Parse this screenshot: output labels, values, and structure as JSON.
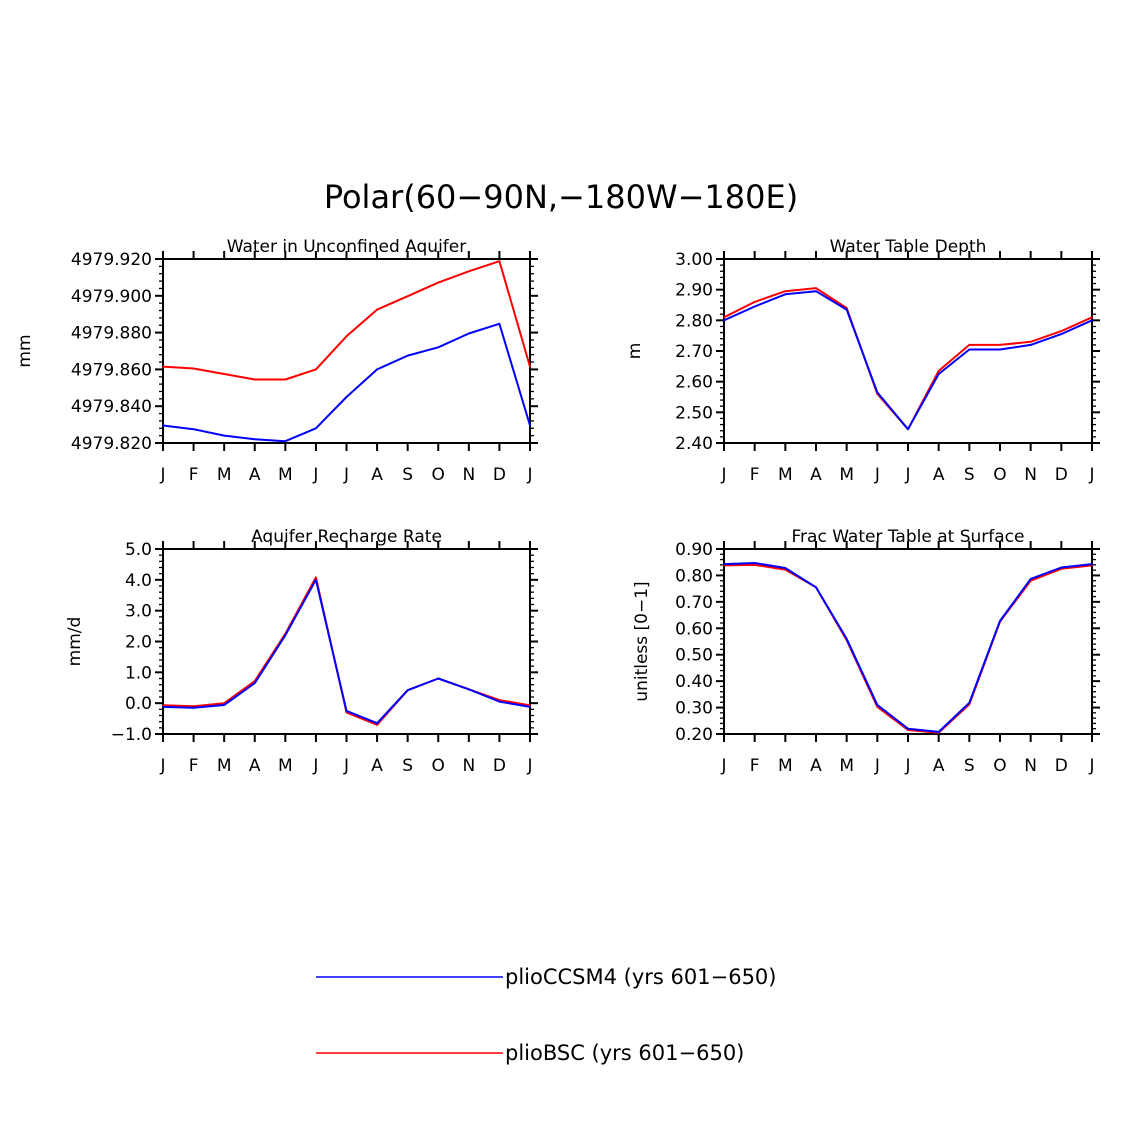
{
  "figure_title": "Polar(60−90N,−180W−180E)",
  "colors": {
    "plioCCSM4": "#0000ff",
    "plioBSC": "#ff0000",
    "axis": "#000000"
  },
  "legend": [
    {
      "label": "plioCCSM4 (yrs 601−650)",
      "color": "#0000ff"
    },
    {
      "label": "plioBSC (yrs 601−650)",
      "color": "#ff0000"
    }
  ],
  "chart_data": [
    {
      "type": "line",
      "title": "Water in Unconfined Aquifer",
      "xlabel": "",
      "ylabel": "mm",
      "categories": [
        "J",
        "F",
        "M",
        "A",
        "M",
        "J",
        "J",
        "A",
        "S",
        "O",
        "N",
        "D",
        "J"
      ],
      "ylim": [
        4979.82,
        4979.92
      ],
      "yticks": [
        4979.82,
        4979.84,
        4979.86,
        4979.88,
        4979.9,
        4979.92
      ],
      "ytick_labels": [
        "4979.820",
        "4979.840",
        "4979.860",
        "4979.880",
        "4979.900",
        "4979.920"
      ],
      "series": [
        {
          "key": "plioBSC",
          "values": [
            4979.8615,
            4979.8605,
            4979.8575,
            4979.8545,
            4979.8545,
            4979.86,
            4979.878,
            4979.8925,
            4979.8998,
            4979.9072,
            4979.9133,
            4979.9188,
            4979.8615
          ]
        },
        {
          "key": "plioCCSM4",
          "values": [
            4979.8295,
            4979.8275,
            4979.824,
            4979.822,
            4979.821,
            4979.828,
            4979.845,
            4979.86,
            4979.8675,
            4979.872,
            4979.8795,
            4979.8848,
            4979.8295
          ]
        }
      ]
    },
    {
      "type": "line",
      "title": "Water Table Depth",
      "xlabel": "",
      "ylabel": "m",
      "categories": [
        "J",
        "F",
        "M",
        "A",
        "M",
        "J",
        "J",
        "A",
        "S",
        "O",
        "N",
        "D",
        "J"
      ],
      "ylim": [
        2.4,
        3.0
      ],
      "yticks": [
        2.4,
        2.5,
        2.6,
        2.7,
        2.8,
        2.9,
        3.0
      ],
      "ytick_labels": [
        "2.40",
        "2.50",
        "2.60",
        "2.70",
        "2.80",
        "2.90",
        "3.00"
      ],
      "series": [
        {
          "key": "plioBSC",
          "values": [
            2.81,
            2.86,
            2.895,
            2.905,
            2.84,
            2.56,
            2.445,
            2.635,
            2.72,
            2.72,
            2.73,
            2.765,
            2.81
          ]
        },
        {
          "key": "plioCCSM4",
          "values": [
            2.8,
            2.845,
            2.885,
            2.895,
            2.835,
            2.565,
            2.445,
            2.625,
            2.705,
            2.705,
            2.72,
            2.755,
            2.8
          ]
        }
      ]
    },
    {
      "type": "line",
      "title": "Aquifer Recharge Rate",
      "xlabel": "",
      "ylabel": "mm/d",
      "categories": [
        "J",
        "F",
        "M",
        "A",
        "M",
        "J",
        "J",
        "A",
        "S",
        "O",
        "N",
        "D",
        "J"
      ],
      "ylim": [
        -1.0,
        5.0
      ],
      "yticks": [
        -1.0,
        0.0,
        1.0,
        2.0,
        3.0,
        4.0,
        5.0
      ],
      "ytick_labels": [
        "−1.0",
        "0.0",
        "1.0",
        "2.0",
        "3.0",
        "4.0",
        "5.0"
      ],
      "series": [
        {
          "key": "plioBSC",
          "values": [
            -0.07,
            -0.1,
            0.0,
            0.72,
            2.25,
            4.08,
            -0.3,
            -0.7,
            0.42,
            0.8,
            0.45,
            0.1,
            -0.07
          ]
        },
        {
          "key": "plioCCSM4",
          "values": [
            -0.12,
            -0.15,
            -0.06,
            0.65,
            2.2,
            4.0,
            -0.25,
            -0.65,
            0.42,
            0.8,
            0.45,
            0.05,
            -0.12
          ]
        }
      ]
    },
    {
      "type": "line",
      "title": "Frac Water Table at Surface",
      "xlabel": "",
      "ylabel": "unitless [0−1]",
      "categories": [
        "J",
        "F",
        "M",
        "A",
        "M",
        "J",
        "J",
        "A",
        "S",
        "O",
        "N",
        "D",
        "J"
      ],
      "ylim": [
        0.2,
        0.9
      ],
      "yticks": [
        0.2,
        0.3,
        0.4,
        0.5,
        0.6,
        0.7,
        0.8,
        0.9
      ],
      "ytick_labels": [
        "0.20",
        "0.30",
        "0.40",
        "0.50",
        "0.60",
        "0.70",
        "0.80",
        "0.90"
      ],
      "series": [
        {
          "key": "plioBSC",
          "values": [
            0.838,
            0.84,
            0.822,
            0.755,
            0.555,
            0.303,
            0.215,
            0.205,
            0.312,
            0.625,
            0.78,
            0.825,
            0.838
          ]
        },
        {
          "key": "plioCCSM4",
          "values": [
            0.843,
            0.847,
            0.828,
            0.755,
            0.56,
            0.31,
            0.22,
            0.208,
            0.318,
            0.628,
            0.787,
            0.83,
            0.843
          ]
        }
      ]
    }
  ]
}
